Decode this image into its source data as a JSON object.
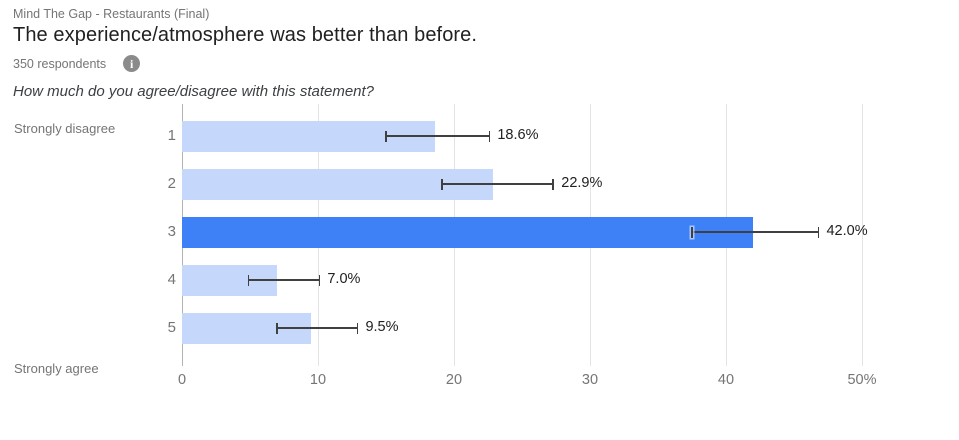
{
  "header": {
    "survey_name": "Mind The Gap - Restaurants (Final)",
    "question_title": "The experience/atmosphere was better than before.",
    "respondents": "350 respondents",
    "info_icon": "info-icon",
    "question_prompt": "How much do you agree/disagree with this statement?"
  },
  "scale": {
    "top_label": "Strongly disagree",
    "bottom_label": "Strongly agree"
  },
  "chart_data": {
    "type": "bar",
    "orientation": "horizontal",
    "title": "The experience/atmosphere was better than before.",
    "subtitle": "How much do you agree/disagree with this statement?",
    "categories": [
      "1",
      "2",
      "3",
      "4",
      "5"
    ],
    "values": [
      18.6,
      22.9,
      42.0,
      7.0,
      9.5
    ],
    "value_labels": [
      "18.6%",
      "22.9%",
      "42.0%",
      "7.0%",
      "9.5%"
    ],
    "error_bars": {
      "low": [
        15.0,
        19.1,
        37.5,
        4.9,
        7.0
      ],
      "high": [
        22.6,
        27.3,
        46.8,
        10.1,
        12.9
      ]
    },
    "highlighted_index": 2,
    "x_axis": {
      "min": 0,
      "max": 50,
      "tick_step": 10,
      "tick_labels": [
        "0",
        "10",
        "20",
        "30",
        "40",
        "50%"
      ]
    },
    "y_axis_top_label": "Strongly disagree",
    "y_axis_bottom_label": "Strongly agree",
    "grid": true,
    "legend": "none",
    "colors": {
      "bar": "#c5d8fb",
      "bar_highlighted": "#3e80f6",
      "gridline": "#e4e4e4",
      "axis_line": "#b3b3b3",
      "error_bar": "#404040",
      "value_text": "#212121",
      "muted_text": "#757575"
    }
  }
}
